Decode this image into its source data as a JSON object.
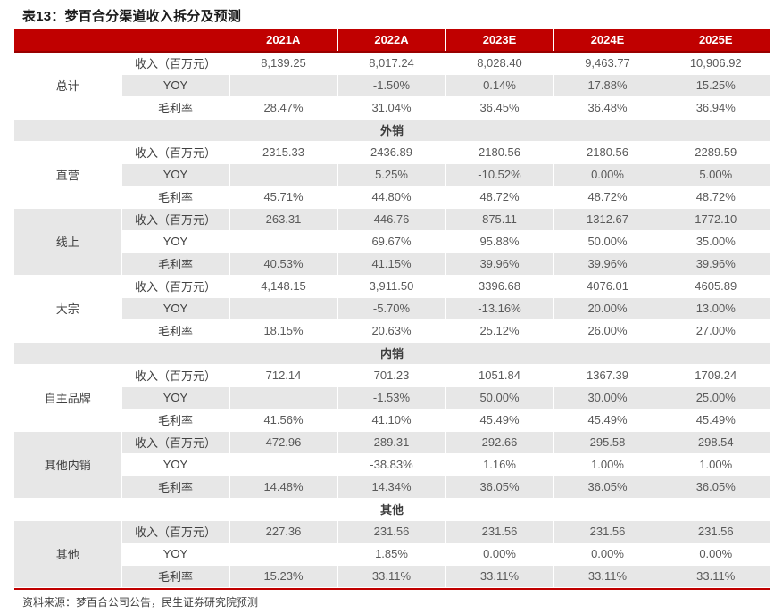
{
  "title": "表13：梦百合分渠道收入拆分及预测",
  "source": "资料来源：梦百合公司公告，民生证券研究院预测",
  "colors": {
    "header_red": "#C00000",
    "header_red_dark": "#990000",
    "stripe_gray": "#e7e7e7",
    "row_white": "#ffffff",
    "rule_red": "#C00000"
  },
  "table": {
    "year_columns": [
      "2021A",
      "2022A",
      "2023E",
      "2024E",
      "2025E"
    ],
    "blocks": [
      {
        "type": "group",
        "label": "总计",
        "rows": [
          {
            "metric": "收入（百万元）",
            "values": [
              "8,139.25",
              "8,017.24",
              "8,028.40",
              "9,463.77",
              "10,906.92"
            ]
          },
          {
            "metric": "YOY",
            "values": [
              "",
              "-1.50%",
              "0.14%",
              "17.88%",
              "15.25%"
            ]
          },
          {
            "metric": "毛利率",
            "values": [
              "28.47%",
              "31.04%",
              "36.45%",
              "36.48%",
              "36.94%"
            ]
          }
        ]
      },
      {
        "type": "section",
        "label": "外销"
      },
      {
        "type": "group",
        "label": "直营",
        "rows": [
          {
            "metric": "收入（百万元）",
            "values": [
              "2315.33",
              "2436.89",
              "2180.56",
              "2180.56",
              "2289.59"
            ]
          },
          {
            "metric": "YOY",
            "values": [
              "",
              "5.25%",
              "-10.52%",
              "0.00%",
              "5.00%"
            ]
          },
          {
            "metric": "毛利率",
            "values": [
              "45.71%",
              "44.80%",
              "48.72%",
              "48.72%",
              "48.72%"
            ]
          }
        ]
      },
      {
        "type": "group",
        "label": "线上",
        "rows": [
          {
            "metric": "收入（百万元）",
            "values": [
              "263.31",
              "446.76",
              "875.11",
              "1312.67",
              "1772.10"
            ]
          },
          {
            "metric": "YOY",
            "values": [
              "",
              "69.67%",
              "95.88%",
              "50.00%",
              "35.00%"
            ]
          },
          {
            "metric": "毛利率",
            "values": [
              "40.53%",
              "41.15%",
              "39.96%",
              "39.96%",
              "39.96%"
            ]
          }
        ]
      },
      {
        "type": "group",
        "label": "大宗",
        "rows": [
          {
            "metric": "收入（百万元）",
            "values": [
              "4,148.15",
              "3,911.50",
              "3396.68",
              "4076.01",
              "4605.89"
            ]
          },
          {
            "metric": "YOY",
            "values": [
              "",
              "-5.70%",
              "-13.16%",
              "20.00%",
              "13.00%"
            ]
          },
          {
            "metric": "毛利率",
            "values": [
              "18.15%",
              "20.63%",
              "25.12%",
              "26.00%",
              "27.00%"
            ]
          }
        ]
      },
      {
        "type": "section",
        "label": "内销"
      },
      {
        "type": "group",
        "label": "自主品牌",
        "rows": [
          {
            "metric": "收入（百万元）",
            "values": [
              "712.14",
              "701.23",
              "1051.84",
              "1367.39",
              "1709.24"
            ]
          },
          {
            "metric": "YOY",
            "values": [
              "",
              "-1.53%",
              "50.00%",
              "30.00%",
              "25.00%"
            ]
          },
          {
            "metric": "毛利率",
            "values": [
              "41.56%",
              "41.10%",
              "45.49%",
              "45.49%",
              "45.49%"
            ]
          }
        ]
      },
      {
        "type": "group",
        "label": "其他内销",
        "rows": [
          {
            "metric": "收入（百万元）",
            "values": [
              "472.96",
              "289.31",
              "292.66",
              "295.58",
              "298.54"
            ]
          },
          {
            "metric": "YOY",
            "values": [
              "",
              "-38.83%",
              "1.16%",
              "1.00%",
              "1.00%"
            ]
          },
          {
            "metric": "毛利率",
            "values": [
              "14.48%",
              "14.34%",
              "36.05%",
              "36.05%",
              "36.05%"
            ]
          }
        ]
      },
      {
        "type": "section",
        "label": "其他"
      },
      {
        "type": "group",
        "label": "其他",
        "rows": [
          {
            "metric": "收入（百万元）",
            "values": [
              "227.36",
              "231.56",
              "231.56",
              "231.56",
              "231.56"
            ]
          },
          {
            "metric": "YOY",
            "values": [
              "",
              "1.85%",
              "0.00%",
              "0.00%",
              "0.00%"
            ]
          },
          {
            "metric": "毛利率",
            "values": [
              "15.23%",
              "33.11%",
              "33.11%",
              "33.11%",
              "33.11%"
            ]
          }
        ]
      }
    ]
  }
}
